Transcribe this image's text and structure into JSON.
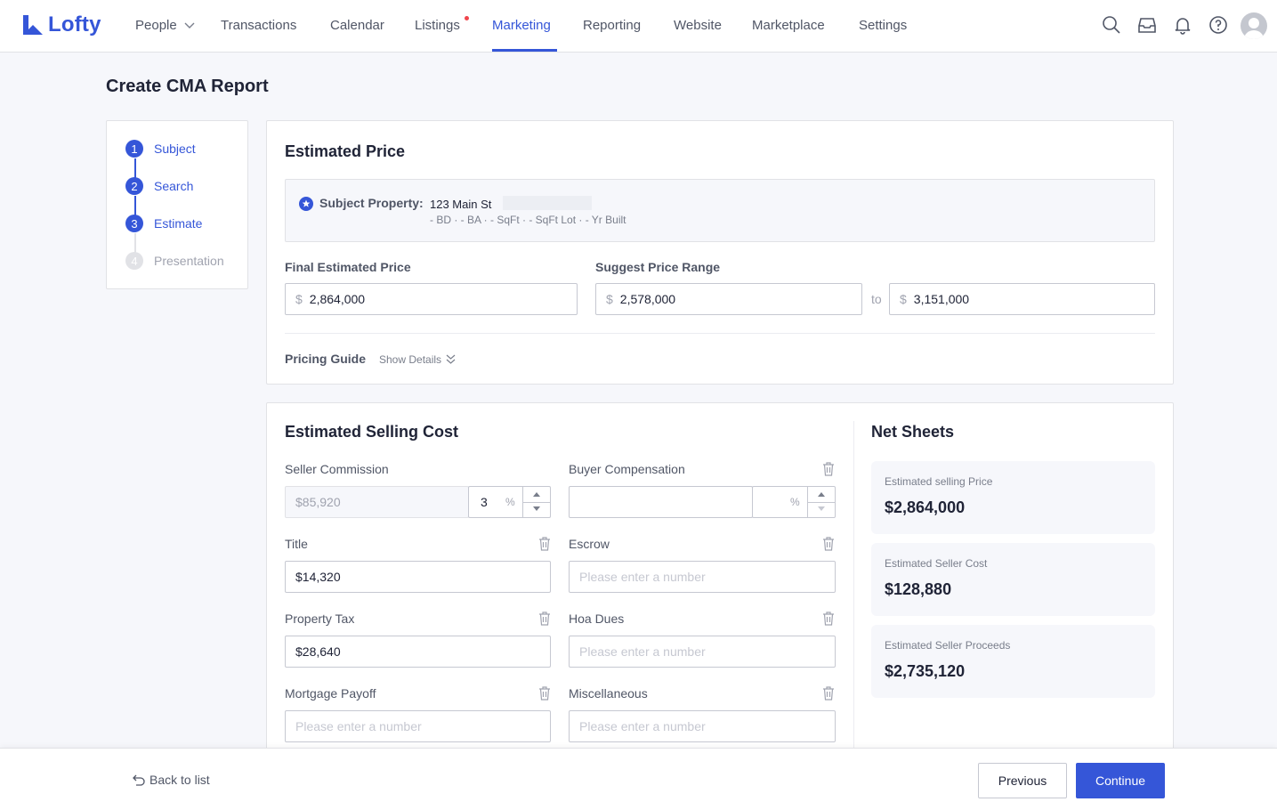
{
  "nav": {
    "logo": "Lofty",
    "items": [
      "People",
      "Transactions",
      "Calendar",
      "Listings",
      "Marketing",
      "Reporting",
      "Website",
      "Marketplace",
      "Settings"
    ],
    "active": "Marketing"
  },
  "page": {
    "title": "Create CMA Report"
  },
  "steps": [
    {
      "num": "1",
      "label": "Subject"
    },
    {
      "num": "2",
      "label": "Search"
    },
    {
      "num": "3",
      "label": "Estimate"
    },
    {
      "num": "4",
      "label": "Presentation"
    }
  ],
  "estimated_price": {
    "heading": "Estimated Price",
    "subject_label": "Subject Property:",
    "subject_address": "123 Main St",
    "subject_details": "- BD · - BA · - SqFt · - SqFt Lot · - Yr Built",
    "final_label": "Final Estimated Price",
    "final_value": "2,864,000",
    "range_label": "Suggest Price Range",
    "range_low": "2,578,000",
    "range_to": "to",
    "range_high": "3,151,000",
    "currency": "$",
    "pricing_guide": "Pricing Guide",
    "show_details": "Show Details"
  },
  "selling_cost": {
    "heading": "Estimated Selling Cost",
    "seller_commission": {
      "label": "Seller Commission",
      "value": "$85,920",
      "percent": "3",
      "pct_sign": "%"
    },
    "buyer_compensation": {
      "label": "Buyer Compensation",
      "value": "",
      "percent": "",
      "pct_sign": "%"
    },
    "title": {
      "label": "Title",
      "value": "$14,320"
    },
    "escrow": {
      "label": "Escrow",
      "placeholder": "Please enter a number"
    },
    "property_tax": {
      "label": "Property Tax",
      "value": "$28,640"
    },
    "hoa_dues": {
      "label": "Hoa Dues",
      "placeholder": "Please enter a number"
    },
    "mortgage_payoff": {
      "label": "Mortgage Payoff",
      "placeholder": "Please enter a number"
    },
    "miscellaneous": {
      "label": "Miscellaneous",
      "placeholder": "Please enter a number"
    }
  },
  "net_sheets": {
    "heading": "Net Sheets",
    "items": [
      {
        "label": "Estimated selling Price",
        "value": "$2,864,000"
      },
      {
        "label": "Estimated Seller Cost",
        "value": "$128,880"
      },
      {
        "label": "Estimated Seller Proceeds",
        "value": "$2,735,120"
      }
    ]
  },
  "footer": {
    "back": "Back to list",
    "previous": "Previous",
    "continue": "Continue"
  },
  "colors": {
    "accent": "#3556d8",
    "notification_dot": "#f0454c"
  }
}
